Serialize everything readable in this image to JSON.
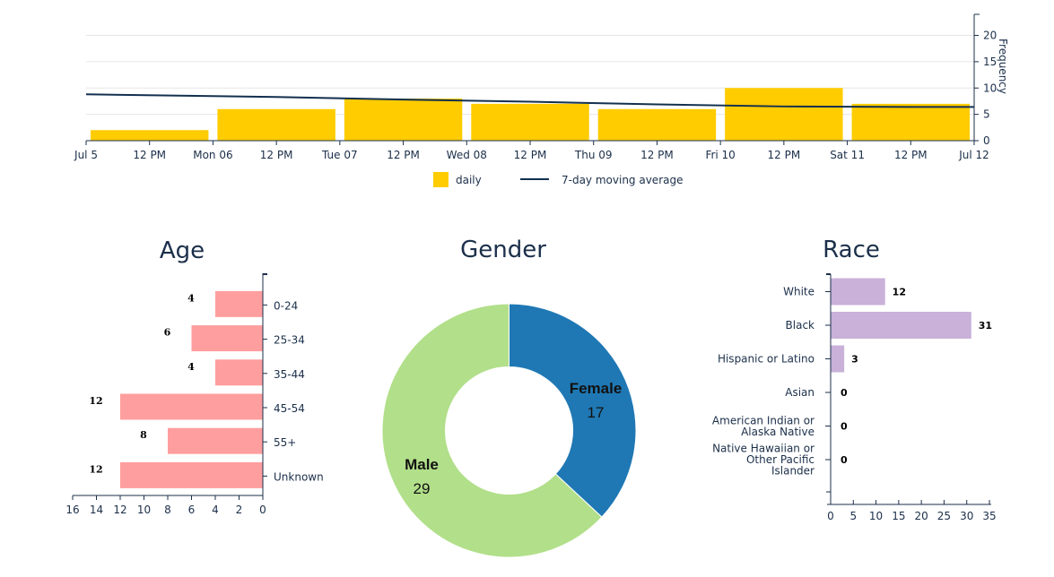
{
  "chart_data": [
    {
      "type": "bar",
      "x": [
        "Jul 5",
        "Jul 6",
        "Jul 7",
        "Jul 8",
        "Jul 9",
        "Jul 10",
        "Jul 11"
      ],
      "series": [
        {
          "name": "daily",
          "type": "bar",
          "color": "#FFCC00",
          "values": [
            2,
            6,
            8,
            7,
            6,
            10,
            7
          ]
        },
        {
          "name": "7-day moving average",
          "type": "line",
          "color": "#12304F",
          "values": [
            8.8,
            8.3,
            7.8,
            7.4,
            6.9,
            6.5,
            6.4
          ]
        }
      ],
      "x_ticks": [
        "Jul 5",
        "12 PM",
        "Mon 06",
        "12 PM",
        "Tue 07",
        "12 PM",
        "Wed 08",
        "12 PM",
        "Thu 09",
        "12 PM",
        "Fri 10",
        "12 PM",
        "Sat 11",
        "12 PM",
        "Jul 12"
      ],
      "ylabel": "Frequency",
      "y_ticks": [
        "0",
        "5",
        "10",
        "15",
        "20"
      ],
      "ylim": [
        0,
        24
      ],
      "legend": [
        "daily",
        "7-day moving average"
      ],
      "legend_position": "bottom-center",
      "grid": true
    },
    {
      "type": "bar",
      "orientation": "horizontal",
      "title": "Age",
      "categories": [
        "0-24",
        "25-34",
        "35-44",
        "45-54",
        "55+",
        "Unknown"
      ],
      "values": [
        4,
        6,
        4,
        12,
        8,
        12
      ],
      "color": "#FF9E9E",
      "x_ticks": [
        "16",
        "14",
        "12",
        "10",
        "8",
        "6",
        "4",
        "2",
        "0"
      ],
      "xlim": [
        0,
        16
      ],
      "reversed": true
    },
    {
      "type": "pie",
      "donut": true,
      "title": "Gender",
      "labels": [
        "Female",
        "Male"
      ],
      "values": [
        17,
        29
      ],
      "colors": [
        "#1F78B4",
        "#B2DF8A"
      ]
    },
    {
      "type": "bar",
      "orientation": "horizontal",
      "title": "Race",
      "categories": [
        "White",
        "Black",
        "Hispanic or Latino",
        "Asian",
        "American Indian or Alaska Native",
        "Native Hawaiian or Other Pacific Islander"
      ],
      "category_lines": [
        [
          "White"
        ],
        [
          "Black"
        ],
        [
          "Hispanic or Latino"
        ],
        [
          "Asian"
        ],
        [
          "American Indian or",
          "Alaska Native"
        ],
        [
          "Native Hawaiian or",
          "Other Pacific",
          "Islander"
        ]
      ],
      "values": [
        12,
        31,
        3,
        0,
        0,
        0
      ],
      "color": "#C9B1D9",
      "x_ticks": [
        "0",
        "5",
        "10",
        "15",
        "20",
        "25",
        "30",
        "35"
      ],
      "xlim": [
        0,
        35
      ]
    }
  ]
}
